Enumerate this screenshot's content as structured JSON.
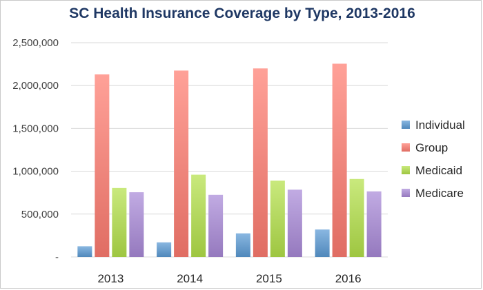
{
  "chart_data": {
    "type": "bar",
    "title": "SC Health Insurance Coverage by Type, 2013-2016",
    "categories": [
      "2013",
      "2014",
      "2015",
      "2016"
    ],
    "series": [
      {
        "name": "Individual",
        "values": [
          125000,
          170000,
          275000,
          320000
        ],
        "color": "#5b9bd5"
      },
      {
        "name": "Group",
        "values": [
          2130000,
          2175000,
          2200000,
          2255000
        ],
        "color": "#ff7c70"
      },
      {
        "name": "Medicaid",
        "values": [
          805000,
          960000,
          890000,
          910000
        ],
        "color": "#b4e14a"
      },
      {
        "name": "Medicare",
        "values": [
          755000,
          725000,
          785000,
          765000
        ],
        "color": "#a98ad8"
      }
    ],
    "ylim": [
      0,
      2500000
    ],
    "yticks": [
      0,
      500000,
      1000000,
      1500000,
      2000000,
      2500000
    ],
    "ytick_labels": [
      "-",
      "500,000",
      "1,000,000",
      "1,500,000",
      "2,000,000",
      "2,500,000"
    ],
    "grid": true,
    "legend_position": "right"
  }
}
